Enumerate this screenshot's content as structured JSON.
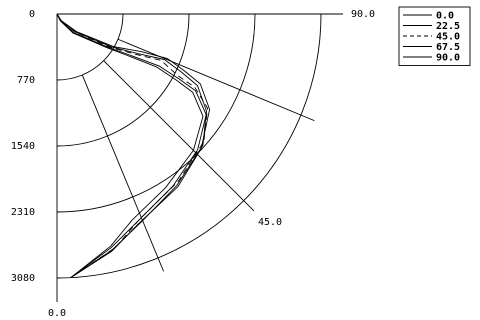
{
  "chart_data": {
    "type": "polar",
    "xlabel": "",
    "ylabel": "",
    "radius_ticks": [
      "0",
      "770",
      "1540",
      "2310",
      "3080"
    ],
    "radius_range": [
      0,
      3080
    ],
    "angle_labels": [
      "0.0",
      "45.0",
      "90.0"
    ],
    "angle_range": [
      0,
      90
    ],
    "grid": true,
    "legend_position": "top-right",
    "series": [
      {
        "name": "0.0",
        "dash": "",
        "points": [
          [
            0,
            0
          ],
          [
            26,
            88
          ],
          [
            40,
            288
          ],
          [
            56,
            700
          ],
          [
            60,
            1000
          ],
          [
            62,
            1320
          ],
          [
            61,
            1600
          ],
          [
            60,
            1830
          ],
          [
            55,
            2080
          ],
          [
            45,
            2250
          ],
          [
            32,
            2390
          ],
          [
            20,
            2560
          ],
          [
            13,
            2780
          ],
          [
            3,
            3080
          ]
        ]
      },
      {
        "name": "22.5",
        "dash": "",
        "points": [
          [
            0,
            0
          ],
          [
            28,
            90
          ],
          [
            42,
            290
          ],
          [
            57,
            715
          ],
          [
            61,
            1020
          ],
          [
            63,
            1340
          ],
          [
            62,
            1610
          ],
          [
            61,
            1850
          ],
          [
            56,
            2100
          ],
          [
            46,
            2280
          ],
          [
            34,
            2420
          ],
          [
            21,
            2600
          ],
          [
            13,
            2800
          ],
          [
            3,
            3080
          ]
        ]
      },
      {
        "name": "45.0",
        "dash": "6 4",
        "points": [
          [
            0,
            0
          ],
          [
            30,
            92
          ],
          [
            45,
            295
          ],
          [
            58,
            730
          ],
          [
            63,
            1040
          ],
          [
            66,
            1330
          ],
          [
            63,
            1580
          ],
          [
            62,
            1820
          ],
          [
            58,
            2070
          ],
          [
            49,
            2270
          ],
          [
            36,
            2410
          ],
          [
            22,
            2580
          ],
          [
            14,
            2810
          ],
          [
            3,
            3080
          ]
        ]
      },
      {
        "name": "67.5",
        "dash": "",
        "points": [
          [
            0,
            0
          ],
          [
            31,
            93
          ],
          [
            46,
            300
          ],
          [
            59,
            745
          ],
          [
            64,
            1060
          ],
          [
            67,
            1360
          ],
          [
            65,
            1600
          ],
          [
            63,
            1840
          ],
          [
            57,
            2080
          ],
          [
            48,
            2290
          ],
          [
            35,
            2440
          ],
          [
            22,
            2620
          ],
          [
            13,
            2830
          ],
          [
            3,
            3080
          ]
        ]
      },
      {
        "name": "90.0",
        "dash": "",
        "points": [
          [
            0,
            0
          ],
          [
            33,
            95
          ],
          [
            48,
            305
          ],
          [
            60,
            760
          ],
          [
            66,
            1080
          ],
          [
            68,
            1390
          ],
          [
            66,
            1620
          ],
          [
            64,
            1860
          ],
          [
            58,
            2100
          ],
          [
            47,
            2300
          ],
          [
            35,
            2460
          ],
          [
            21,
            2630
          ],
          [
            13,
            2840
          ],
          [
            3,
            3080
          ]
        ]
      }
    ]
  }
}
